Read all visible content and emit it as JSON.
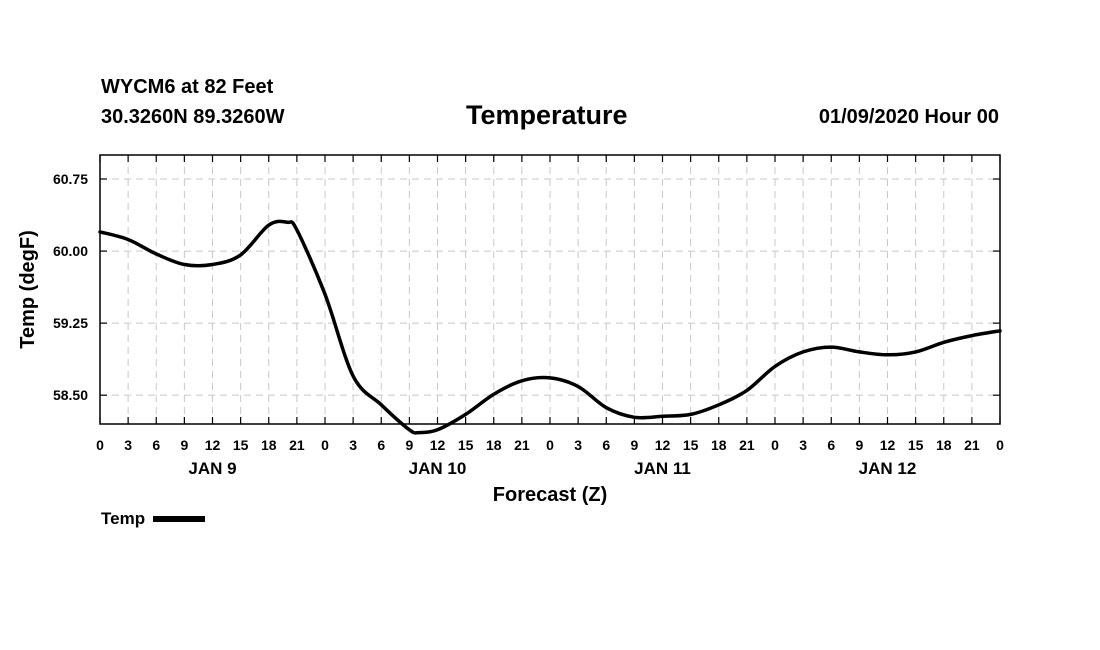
{
  "header": {
    "station": "WYCM6 at 82 Feet",
    "coords": "30.3260N 89.3260W",
    "title": "Temperature",
    "run": "01/09/2020 Hour 00"
  },
  "legend": {
    "label": "Temp"
  },
  "chart_data": {
    "type": "line",
    "title": "Temperature",
    "xlabel": "Forecast (Z)",
    "ylabel": "Temp (degF)",
    "ylim": [
      58.2,
      61.0
    ],
    "yticks": [
      58.5,
      59.25,
      60.0,
      60.75
    ],
    "ytick_labels": [
      "58.50",
      "59.25",
      "60.00",
      "60.75"
    ],
    "xlim": [
      0,
      96
    ],
    "xticks": [
      0,
      3,
      6,
      9,
      12,
      15,
      18,
      21,
      24,
      27,
      30,
      33,
      36,
      39,
      42,
      45,
      48,
      51,
      54,
      57,
      60,
      63,
      66,
      69,
      72,
      75,
      78,
      81,
      84,
      87,
      90,
      93,
      96
    ],
    "xtick_labels": [
      "0",
      "3",
      "6",
      "9",
      "12",
      "15",
      "18",
      "21",
      "0",
      "3",
      "6",
      "9",
      "12",
      "15",
      "18",
      "21",
      "0",
      "3",
      "6",
      "9",
      "12",
      "15",
      "18",
      "21",
      "0",
      "3",
      "6",
      "9",
      "12",
      "15",
      "18",
      "21",
      "0"
    ],
    "day_labels": [
      {
        "x": 12,
        "label": "JAN 9"
      },
      {
        "x": 36,
        "label": "JAN 10"
      },
      {
        "x": 60,
        "label": "JAN 11"
      },
      {
        "x": 84,
        "label": "JAN 12"
      }
    ],
    "grid": true,
    "series": [
      {
        "name": "Temp",
        "x": [
          0,
          3,
          6,
          9,
          12,
          15,
          18,
          20,
          21,
          24,
          27,
          30,
          33,
          34,
          36,
          39,
          42,
          45,
          48,
          51,
          54,
          57,
          60,
          63,
          66,
          69,
          72,
          75,
          78,
          81,
          84,
          87,
          90,
          93,
          96
        ],
        "values": [
          60.2,
          60.12,
          59.97,
          59.86,
          59.86,
          59.96,
          60.27,
          60.3,
          60.22,
          59.55,
          58.7,
          58.4,
          58.14,
          58.11,
          58.14,
          58.3,
          58.51,
          58.65,
          58.68,
          58.59,
          58.37,
          58.27,
          58.28,
          58.3,
          58.4,
          58.55,
          58.8,
          58.95,
          59.0,
          58.95,
          58.92,
          58.95,
          59.05,
          59.12,
          59.17
        ]
      }
    ]
  }
}
